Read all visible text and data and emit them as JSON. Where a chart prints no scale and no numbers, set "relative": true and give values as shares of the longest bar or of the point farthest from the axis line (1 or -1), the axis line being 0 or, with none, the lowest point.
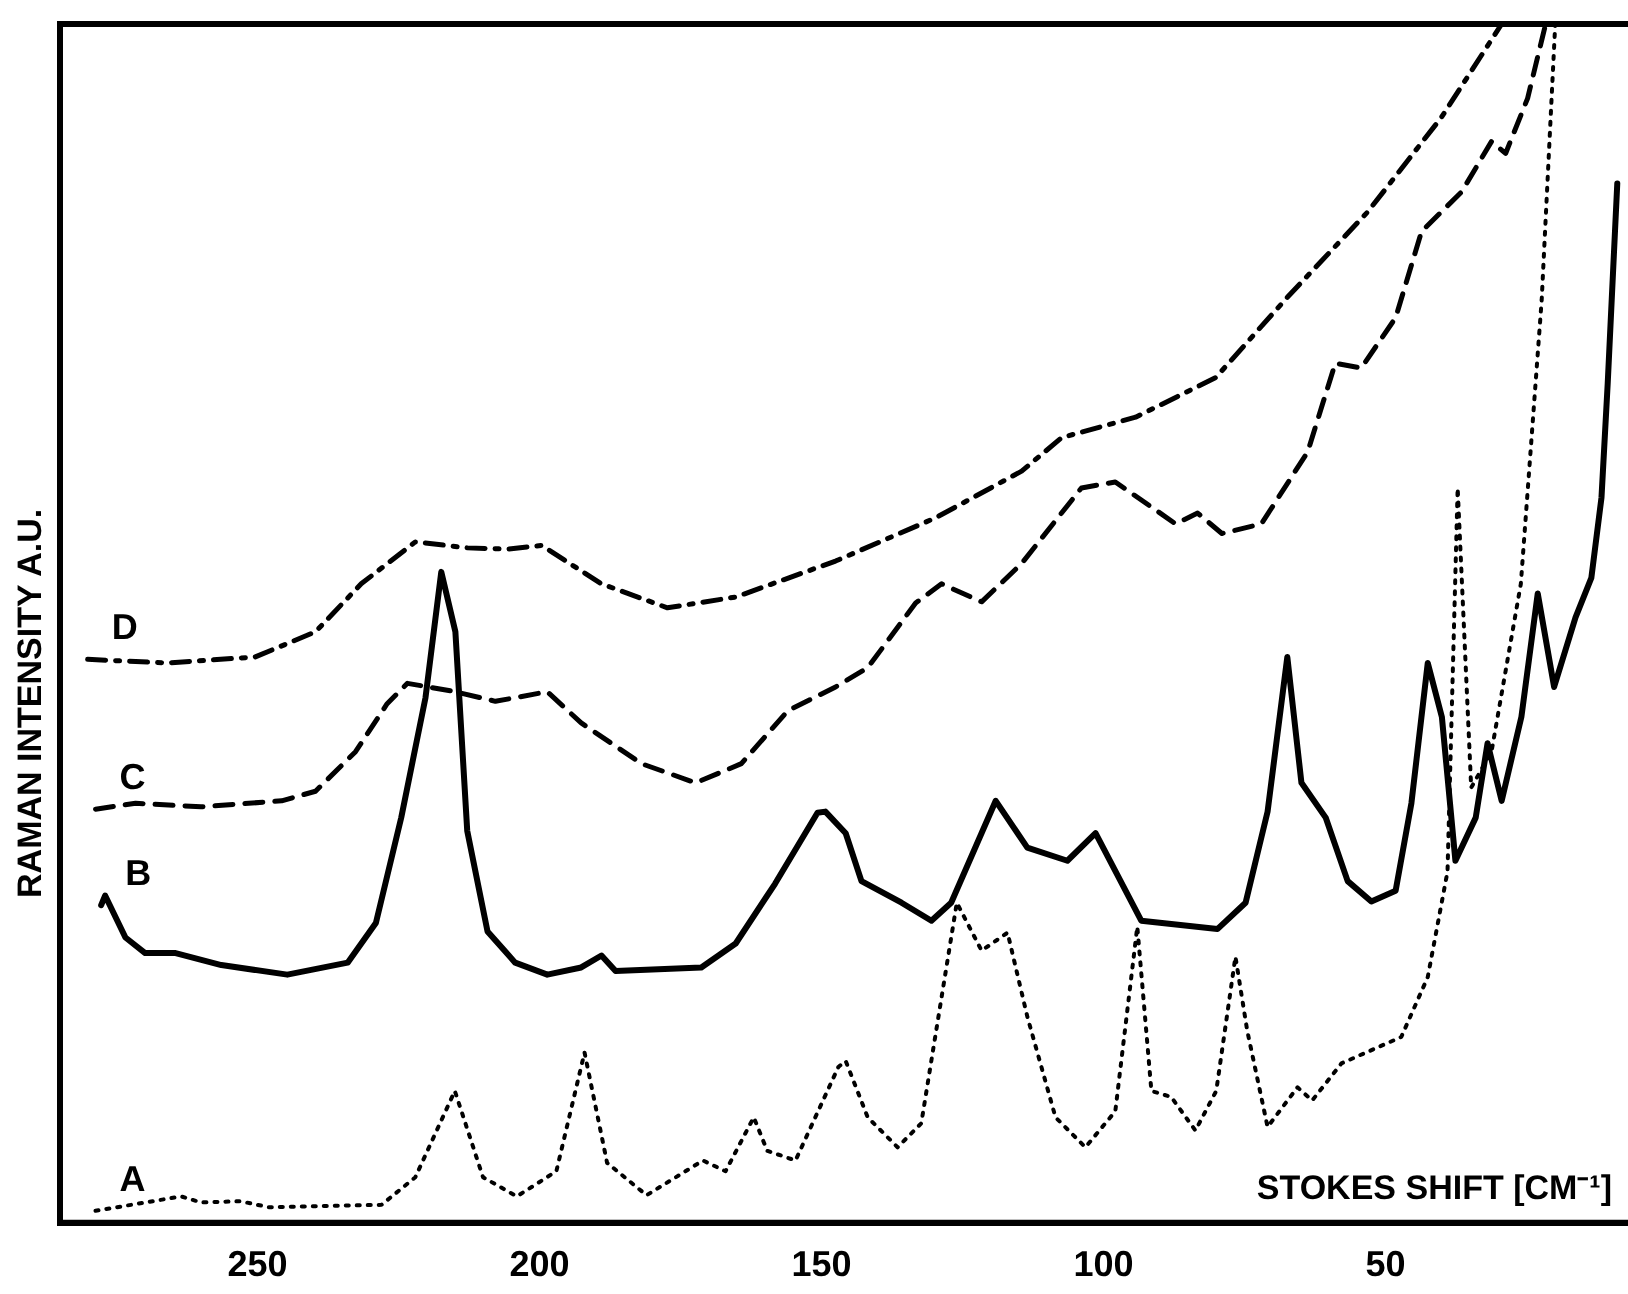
{
  "chart_data": {
    "type": "line",
    "xlabel": "STOKES SHIFT [CM⁻¹]",
    "ylabel": "RAMAN INTENSITY A.U.",
    "relative": true,
    "xlim": [
      285,
      7
    ],
    "xticks": [
      250,
      200,
      150,
      100,
      50
    ],
    "grid": false,
    "legend": false,
    "marker": "none",
    "series": [
      {
        "name": "A",
        "color": "#000000",
        "line_style": "dotted",
        "x": [
          278.7,
          263.5,
          260,
          253,
          248,
          228,
          222,
          215,
          210,
          204,
          197,
          192,
          188,
          181,
          171,
          167,
          162,
          159.6,
          154.6,
          147,
          145.7,
          141.8,
          136.5,
          132.3,
          126,
          121.6,
          117,
          113.5,
          108.5,
          103.2,
          97.9,
          94,
          91.5,
          88,
          83.7,
          80,
          76.6,
          74.5,
          70.9,
          65.6,
          63,
          57.8,
          47.2,
          42.5,
          39,
          37.2,
          34.8,
          31.2,
          26,
          22.3,
          19.9
        ],
        "values": [
          0.01,
          0.022,
          0.017,
          0.018,
          0.013,
          0.015,
          0.038,
          0.11,
          0.038,
          0.022,
          0.043,
          0.142,
          0.05,
          0.023,
          0.052,
          0.043,
          0.088,
          0.06,
          0.052,
          0.13,
          0.135,
          0.088,
          0.063,
          0.083,
          0.267,
          0.227,
          0.242,
          0.172,
          0.088,
          0.063,
          0.093,
          0.247,
          0.11,
          0.105,
          0.077,
          0.11,
          0.222,
          0.16,
          0.08,
          0.113,
          0.102,
          0.133,
          0.155,
          0.205,
          0.293,
          0.613,
          0.363,
          0.393,
          0.533,
          0.77,
          1
        ]
      },
      {
        "name": "B",
        "color": "#000000",
        "line_style": "solid",
        "x": [
          277.7,
          277,
          273.4,
          269.9,
          264.5,
          256.4,
          244.7,
          234,
          229,
          224.5,
          220.2,
          217.4,
          214.9,
          212.8,
          209.2,
          204.3,
          198.6,
          192.6,
          189,
          186.5,
          171.3,
          165.2,
          158.2,
          150.7,
          149.3,
          145.7,
          142.9,
          135.8,
          130.5,
          127,
          119.1,
          113.5,
          106.4,
          101.4,
          93.3,
          79.8,
          74.8,
          70.9,
          67.4,
          64.9,
          60.6,
          56.7,
          52.5,
          48.2,
          45.4,
          42.5,
          40,
          37.6,
          34,
          31.9,
          29.4,
          25.9,
          23,
          20.1,
          16.3,
          13.5,
          11.7,
          10.6,
          8.9
        ],
        "values": [
          0.265,
          0.273,
          0.238,
          0.225,
          0.225,
          0.215,
          0.207,
          0.217,
          0.25,
          0.338,
          0.438,
          0.543,
          0.493,
          0.327,
          0.243,
          0.217,
          0.207,
          0.213,
          0.223,
          0.21,
          0.213,
          0.233,
          0.283,
          0.342,
          0.343,
          0.325,
          0.285,
          0.267,
          0.252,
          0.267,
          0.352,
          0.313,
          0.302,
          0.325,
          0.252,
          0.245,
          0.267,
          0.343,
          0.472,
          0.367,
          0.338,
          0.285,
          0.268,
          0.277,
          0.35,
          0.467,
          0.422,
          0.302,
          0.338,
          0.4,
          0.352,
          0.422,
          0.525,
          0.447,
          0.505,
          0.538,
          0.605,
          0.7,
          0.867
        ]
      },
      {
        "name": "C",
        "color": "#000000",
        "line_style": "dashed",
        "x": [
          278.7,
          271.6,
          260,
          245.7,
          239.7,
          232.6,
          227,
          223.4,
          214.9,
          207.8,
          198.6,
          192.6,
          181.9,
          172.3,
          164.2,
          156,
          147.5,
          141.8,
          133.3,
          128.7,
          121.6,
          114.5,
          103.9,
          97.9,
          87.2,
          83.3,
          79,
          72,
          63.8,
          58.9,
          54.3,
          48.2,
          43.6,
          36.5,
          31.2,
          28.7,
          24.8,
          21.6
        ],
        "values": [
          0.345,
          0.35,
          0.347,
          0.352,
          0.36,
          0.393,
          0.433,
          0.45,
          0.443,
          0.435,
          0.443,
          0.417,
          0.383,
          0.367,
          0.383,
          0.427,
          0.447,
          0.463,
          0.517,
          0.533,
          0.518,
          0.55,
          0.613,
          0.618,
          0.583,
          0.592,
          0.575,
          0.583,
          0.643,
          0.717,
          0.713,
          0.755,
          0.827,
          0.86,
          0.902,
          0.892,
          0.938,
          1
        ]
      },
      {
        "name": "D",
        "color": "#000000",
        "line_style": "dashdot",
        "x": [
          280.1,
          266,
          250.4,
          239.7,
          231.6,
          222,
          212.8,
          205.7,
          199.6,
          189,
          177.3,
          165.2,
          147.5,
          129.8,
          114.5,
          107.4,
          94.3,
          80.1,
          67.4,
          53.2,
          40.1,
          29.4
        ],
        "values": [
          0.47,
          0.467,
          0.472,
          0.493,
          0.533,
          0.568,
          0.563,
          0.562,
          0.565,
          0.533,
          0.513,
          0.522,
          0.552,
          0.588,
          0.627,
          0.655,
          0.672,
          0.705,
          0.772,
          0.843,
          0.922,
          1
        ]
      }
    ]
  }
}
